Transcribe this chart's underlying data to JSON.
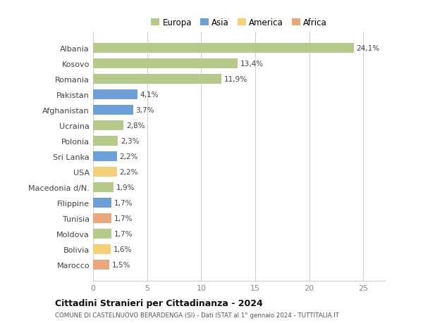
{
  "countries": [
    "Marocco",
    "Bolivia",
    "Moldova",
    "Tunisia",
    "Filippine",
    "Macedonia d/N.",
    "USA",
    "Sri Lanka",
    "Polonia",
    "Ucraina",
    "Afghanistan",
    "Pakistan",
    "Romania",
    "Kosovo",
    "Albania"
  ],
  "values": [
    1.5,
    1.6,
    1.7,
    1.7,
    1.7,
    1.9,
    2.2,
    2.2,
    2.3,
    2.8,
    3.7,
    4.1,
    11.9,
    13.4,
    24.1
  ],
  "labels": [
    "1,5%",
    "1,6%",
    "1,7%",
    "1,7%",
    "1,7%",
    "1,9%",
    "2,2%",
    "2,2%",
    "2,3%",
    "2,8%",
    "3,7%",
    "4,1%",
    "11,9%",
    "13,4%",
    "24,1%"
  ],
  "colors": [
    "#e8a87c",
    "#f5d07a",
    "#b5c98a",
    "#e8a87c",
    "#6f9fd8",
    "#b5c98a",
    "#f5d07a",
    "#6f9fd8",
    "#b5c98a",
    "#b5c98a",
    "#6f9fd8",
    "#6f9fd8",
    "#b5c98a",
    "#b5c98a",
    "#b5c98a"
  ],
  "legend": {
    "Europa": "#b5c98a",
    "Asia": "#6f9fd8",
    "America": "#f5d07a",
    "Africa": "#e8a87c"
  },
  "title1": "Cittadini Stranieri per Cittadinanza - 2024",
  "title2": "COMUNE DI CASTELNUOVO BERARDENGA (SI) - Dati ISTAT al 1° gennaio 2024 - TUTTITALIA.IT",
  "xlim": [
    0,
    27
  ],
  "xticks": [
    0,
    5,
    10,
    15,
    20,
    25
  ],
  "background_color": "#ffffff",
  "grid_color": "#d0d0d0"
}
